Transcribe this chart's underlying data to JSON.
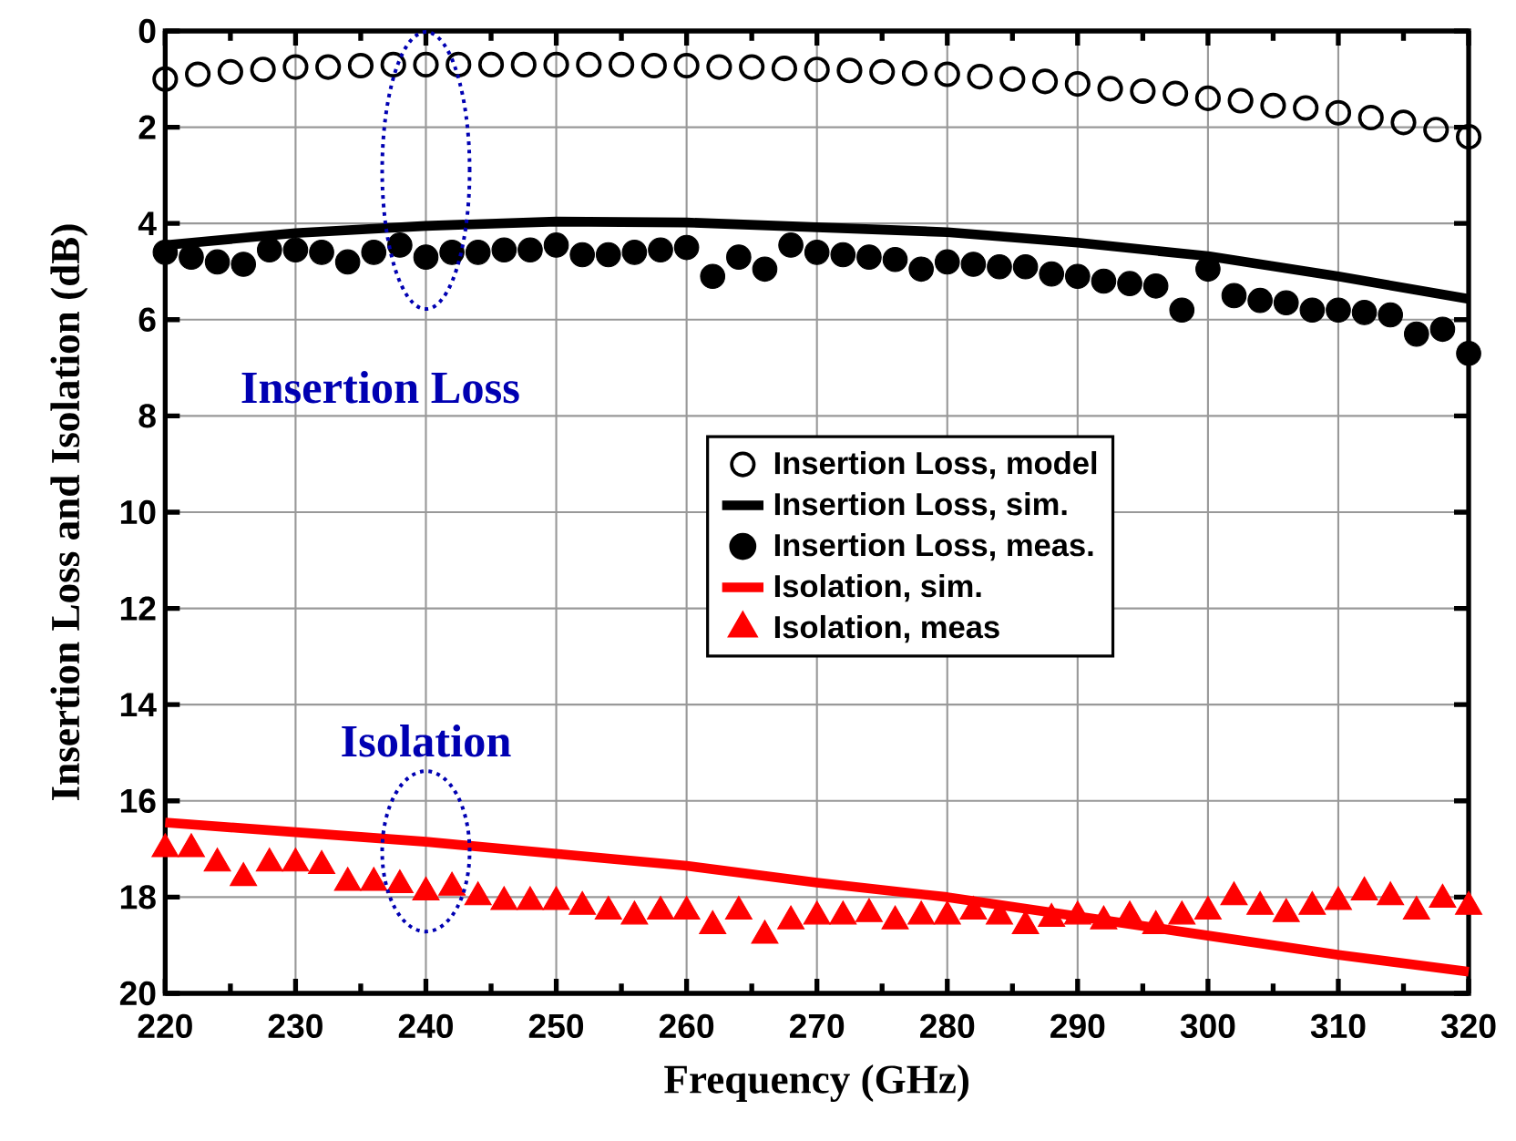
{
  "chart_data": {
    "type": "line",
    "xlabel": "Frequency (GHz)",
    "ylabel": "Insertion Loss and Isolation (dB)",
    "xlim": [
      220,
      320
    ],
    "xticks": [
      220,
      230,
      240,
      250,
      260,
      270,
      280,
      290,
      300,
      310,
      320
    ],
    "ylim": [
      20,
      0
    ],
    "yticks": [
      0,
      2,
      4,
      6,
      8,
      10,
      12,
      14,
      16,
      18,
      20
    ],
    "grid": true,
    "legend": "right",
    "annotations": [
      "Insertion Loss",
      "Isolation"
    ],
    "series": [
      {
        "name": "Insertion Loss, model",
        "type": "scatter",
        "marker": "circle-open",
        "color": "#000000",
        "x": [
          220,
          222.5,
          225,
          227.5,
          230,
          232.5,
          235,
          237.5,
          240,
          242.5,
          245,
          247.5,
          250,
          252.5,
          255,
          257.5,
          260,
          262.5,
          265,
          267.5,
          270,
          272.5,
          275,
          277.5,
          280,
          282.5,
          285,
          287.5,
          290,
          292.5,
          295,
          297.5,
          300,
          302.5,
          305,
          307.5,
          310,
          312.5,
          315,
          317.5,
          320
        ],
        "values": [
          1.0,
          0.9,
          0.85,
          0.8,
          0.75,
          0.75,
          0.72,
          0.7,
          0.7,
          0.7,
          0.7,
          0.7,
          0.7,
          0.7,
          0.7,
          0.72,
          0.72,
          0.75,
          0.75,
          0.78,
          0.8,
          0.82,
          0.85,
          0.88,
          0.9,
          0.95,
          1.0,
          1.05,
          1.1,
          1.2,
          1.25,
          1.3,
          1.4,
          1.45,
          1.55,
          1.6,
          1.7,
          1.8,
          1.9,
          2.05,
          2.2
        ]
      },
      {
        "name": "Insertion Loss, sim.",
        "marker": "none",
        "color": "#000000",
        "x": [
          220,
          230,
          240,
          250,
          260,
          270,
          280,
          290,
          300,
          310,
          320
        ],
        "values": [
          4.45,
          4.2,
          4.05,
          3.96,
          3.98,
          4.08,
          4.18,
          4.4,
          4.68,
          5.1,
          5.57
        ]
      },
      {
        "name": "Insertion Loss, meas.",
        "type": "scatter",
        "marker": "circle",
        "color": "#000000",
        "x": [
          220,
          222,
          224,
          226,
          228,
          230,
          232,
          234,
          236,
          238,
          240,
          242,
          244,
          246,
          248,
          250,
          252,
          254,
          256,
          258,
          260,
          262,
          264,
          266,
          268,
          270,
          272,
          274,
          276,
          278,
          280,
          282,
          284,
          286,
          288,
          290,
          292,
          294,
          296,
          298,
          300,
          302,
          304,
          306,
          308,
          310,
          312,
          314,
          316,
          318,
          320
        ],
        "values": [
          4.6,
          4.7,
          4.8,
          4.85,
          4.55,
          4.55,
          4.6,
          4.8,
          4.6,
          4.45,
          4.7,
          4.6,
          4.6,
          4.55,
          4.55,
          4.45,
          4.65,
          4.65,
          4.6,
          4.55,
          4.5,
          5.1,
          4.7,
          4.95,
          4.45,
          4.6,
          4.65,
          4.7,
          4.75,
          4.95,
          4.8,
          4.85,
          4.9,
          4.9,
          5.05,
          5.1,
          5.2,
          5.25,
          5.3,
          5.8,
          4.95,
          5.5,
          5.6,
          5.65,
          5.8,
          5.8,
          5.85,
          5.9,
          6.3,
          6.2,
          6.7
        ]
      },
      {
        "name": "Isolation, sim.",
        "marker": "none",
        "color": "#ff0000",
        "x": [
          220,
          230,
          240,
          250,
          260,
          270,
          280,
          290,
          300,
          310,
          320
        ],
        "values": [
          16.45,
          16.65,
          16.85,
          17.1,
          17.35,
          17.7,
          18.0,
          18.4,
          18.8,
          19.2,
          19.55
        ]
      },
      {
        "name": "Isolation, meas",
        "type": "scatter",
        "marker": "triangle",
        "color": "#ff0000",
        "x": [
          220,
          222,
          224,
          226,
          228,
          230,
          232,
          234,
          236,
          238,
          240,
          242,
          244,
          246,
          248,
          250,
          252,
          254,
          256,
          258,
          260,
          262,
          264,
          266,
          268,
          270,
          272,
          274,
          276,
          278,
          280,
          282,
          284,
          286,
          288,
          290,
          292,
          294,
          296,
          298,
          300,
          302,
          304,
          306,
          308,
          310,
          312,
          314,
          316,
          318,
          320
        ],
        "values": [
          17.0,
          17.0,
          17.3,
          17.6,
          17.3,
          17.3,
          17.35,
          17.7,
          17.7,
          17.75,
          17.9,
          17.8,
          18.0,
          18.1,
          18.1,
          18.1,
          18.2,
          18.3,
          18.4,
          18.3,
          18.3,
          18.6,
          18.3,
          18.8,
          18.5,
          18.4,
          18.4,
          18.35,
          18.5,
          18.4,
          18.4,
          18.3,
          18.4,
          18.6,
          18.45,
          18.4,
          18.5,
          18.4,
          18.6,
          18.4,
          18.3,
          18.0,
          18.2,
          18.35,
          18.2,
          18.1,
          17.9,
          18.0,
          18.3,
          18.05,
          18.2
        ]
      }
    ]
  }
}
